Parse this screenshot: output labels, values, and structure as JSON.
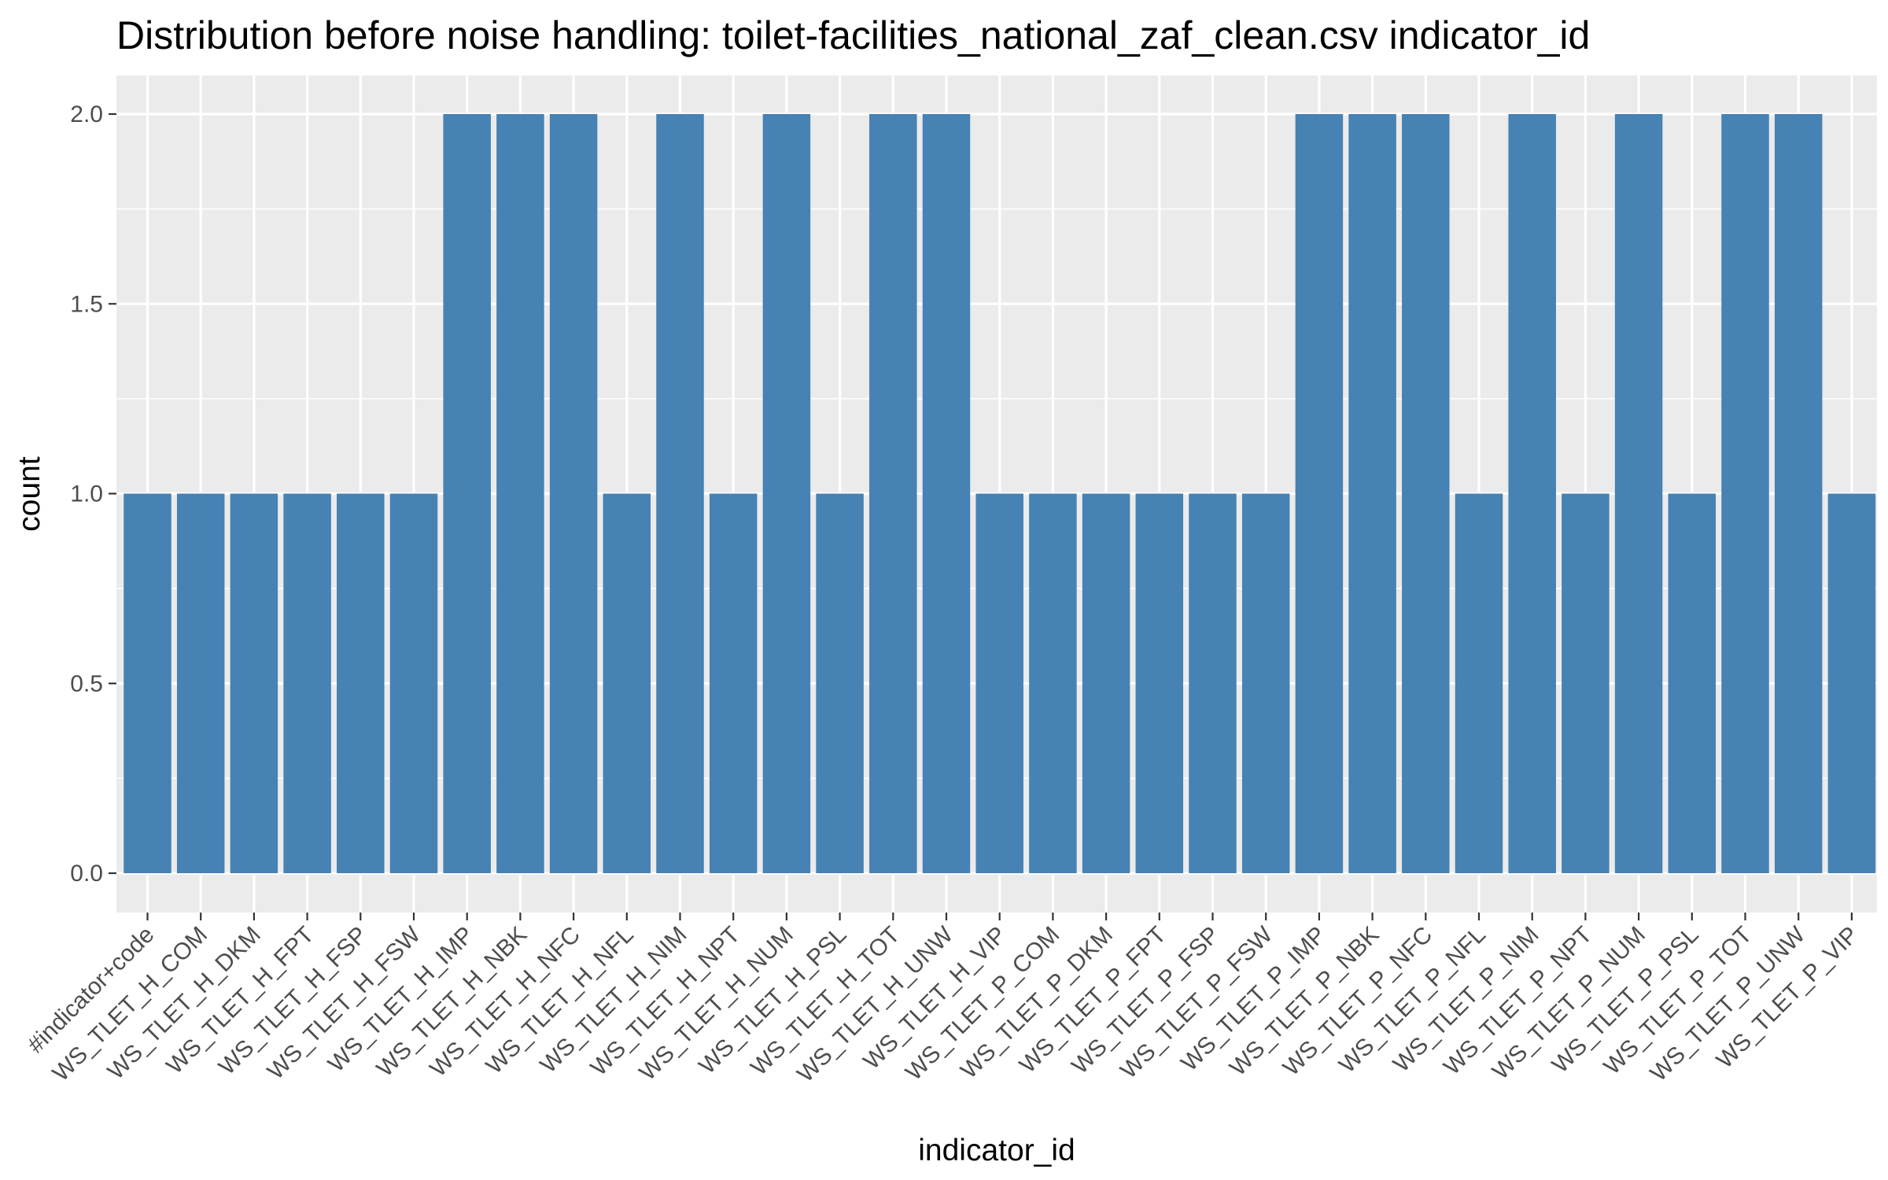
{
  "chart_data": {
    "type": "bar",
    "title": "Distribution before noise handling: toilet-facilities_national_zaf_clean.csv indicator_id",
    "xlabel": "indicator_id",
    "ylabel": "count",
    "ylim": [
      0,
      2.1
    ],
    "yticks": [
      "0.0",
      "0.5",
      "1.0",
      "1.5",
      "2.0"
    ],
    "bar_color": "#4682B4",
    "panel_background": "#EBEBEB",
    "grid": true,
    "categories": [
      "#indicator+code",
      "WS_TLET_H_COM",
      "WS_TLET_H_DKM",
      "WS_TLET_H_FPT",
      "WS_TLET_H_FSP",
      "WS_TLET_H_FSW",
      "WS_TLET_H_IMP",
      "WS_TLET_H_NBK",
      "WS_TLET_H_NFC",
      "WS_TLET_H_NFL",
      "WS_TLET_H_NIM",
      "WS_TLET_H_NPT",
      "WS_TLET_H_NUM",
      "WS_TLET_H_PSL",
      "WS_TLET_H_TOT",
      "WS_TLET_H_UNW",
      "WS_TLET_H_VIP",
      "WS_TLET_P_COM",
      "WS_TLET_P_DKM",
      "WS_TLET_P_FPT",
      "WS_TLET_P_FSP",
      "WS_TLET_P_FSW",
      "WS_TLET_P_IMP",
      "WS_TLET_P_NBK",
      "WS_TLET_P_NFC",
      "WS_TLET_P_NFL",
      "WS_TLET_P_NIM",
      "WS_TLET_P_NPT",
      "WS_TLET_P_NUM",
      "WS_TLET_P_PSL",
      "WS_TLET_P_TOT",
      "WS_TLET_P_UNW",
      "WS_TLET_P_VIP"
    ],
    "values": [
      1,
      1,
      1,
      1,
      1,
      1,
      2,
      2,
      2,
      1,
      2,
      1,
      2,
      1,
      2,
      2,
      1,
      1,
      1,
      1,
      1,
      1,
      2,
      2,
      2,
      1,
      2,
      1,
      2,
      1,
      2,
      2,
      1
    ]
  }
}
